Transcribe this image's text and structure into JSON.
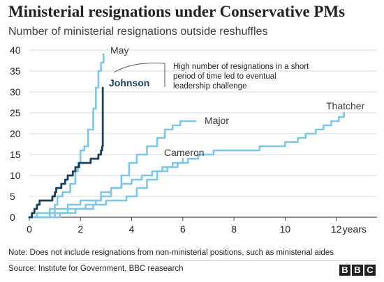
{
  "title": "Ministerial resignations under Conservative PMs",
  "subtitle": "Number of ministerial resignations outside reshuffles",
  "note": "Note: Does not include resignations from non-ministerial positions, such as ministerial aides",
  "source": "Source: Institute for Government, BBC reasearch",
  "logo": [
    "B",
    "B",
    "C"
  ],
  "colors": {
    "light_series": "#7fc6e6",
    "highlight_series": "#1e3f5a",
    "grid": "#d9d9d9",
    "axis": "#444444",
    "text": "#222222"
  },
  "chart_data": {
    "type": "line",
    "xlabel": "",
    "ylabel": "",
    "x_unit_label": "years",
    "xlim": [
      0,
      12.5
    ],
    "ylim": [
      0,
      40
    ],
    "xticks": [
      0,
      2,
      4,
      6,
      8,
      10,
      12
    ],
    "yticks": [
      0,
      5,
      10,
      15,
      20,
      25,
      30,
      35,
      40
    ],
    "grid": "horizontal",
    "annotation": "High number of resignations in a short period of time led to eventual leadership challenge",
    "series": [
      {
        "name": "May",
        "highlight": false,
        "points": [
          [
            0,
            0
          ],
          [
            0.3,
            1
          ],
          [
            0.5,
            1
          ],
          [
            0.8,
            2
          ],
          [
            1.0,
            3
          ],
          [
            1.1,
            5
          ],
          [
            1.3,
            6
          ],
          [
            1.6,
            8
          ],
          [
            1.8,
            11
          ],
          [
            1.9,
            13
          ],
          [
            2.0,
            16
          ],
          [
            2.15,
            17
          ],
          [
            2.3,
            21
          ],
          [
            2.5,
            26
          ],
          [
            2.6,
            31
          ],
          [
            2.7,
            35
          ],
          [
            2.8,
            37
          ],
          [
            2.9,
            39
          ]
        ]
      },
      {
        "name": "Johnson",
        "highlight": true,
        "points": [
          [
            0,
            0
          ],
          [
            0.1,
            1
          ],
          [
            0.2,
            2
          ],
          [
            0.3,
            3
          ],
          [
            0.4,
            4
          ],
          [
            0.8,
            4
          ],
          [
            0.9,
            5
          ],
          [
            1.0,
            6
          ],
          [
            1.05,
            7
          ],
          [
            1.2,
            7
          ],
          [
            1.25,
            8
          ],
          [
            1.4,
            9
          ],
          [
            1.5,
            10
          ],
          [
            1.6,
            10
          ],
          [
            1.7,
            11
          ],
          [
            1.8,
            12
          ],
          [
            1.95,
            13
          ],
          [
            2.3,
            13
          ],
          [
            2.4,
            14
          ],
          [
            2.7,
            15
          ],
          [
            2.8,
            16
          ],
          [
            2.85,
            17
          ],
          [
            2.87,
            31
          ]
        ]
      },
      {
        "name": "Major",
        "highlight": false,
        "points": [
          [
            0,
            0
          ],
          [
            1.0,
            0
          ],
          [
            1.2,
            1
          ],
          [
            1.6,
            1
          ],
          [
            1.8,
            2
          ],
          [
            2.2,
            3
          ],
          [
            2.6,
            4
          ],
          [
            2.8,
            5
          ],
          [
            3.2,
            7
          ],
          [
            3.6,
            10
          ],
          [
            3.9,
            13
          ],
          [
            4.2,
            15
          ],
          [
            4.6,
            17
          ],
          [
            5.0,
            19
          ],
          [
            5.3,
            21
          ],
          [
            5.6,
            22
          ],
          [
            5.9,
            23
          ],
          [
            6.5,
            23
          ]
        ]
      },
      {
        "name": "Cameron",
        "highlight": false,
        "points": [
          [
            0,
            0
          ],
          [
            0.5,
            0
          ],
          [
            1.0,
            2
          ],
          [
            1.5,
            3
          ],
          [
            2.0,
            4
          ],
          [
            2.6,
            4
          ],
          [
            2.8,
            6
          ],
          [
            3.2,
            7
          ],
          [
            3.6,
            8
          ],
          [
            4.0,
            9
          ],
          [
            4.4,
            10
          ],
          [
            4.8,
            11
          ],
          [
            5.2,
            12
          ],
          [
            5.6,
            13
          ],
          [
            6.0,
            14
          ]
        ]
      },
      {
        "name": "Thatcher",
        "highlight": false,
        "points": [
          [
            0,
            0
          ],
          [
            0.6,
            0
          ],
          [
            0.8,
            1
          ],
          [
            1.5,
            2
          ],
          [
            2.5,
            3
          ],
          [
            3.0,
            4
          ],
          [
            3.8,
            5
          ],
          [
            4.2,
            7
          ],
          [
            4.6,
            9
          ],
          [
            5.0,
            11
          ],
          [
            5.4,
            12
          ],
          [
            5.8,
            13
          ],
          [
            6.2,
            14
          ],
          [
            6.6,
            15
          ],
          [
            7.2,
            16
          ],
          [
            8.6,
            16
          ],
          [
            9.0,
            17
          ],
          [
            10.0,
            18
          ],
          [
            10.5,
            19
          ],
          [
            10.8,
            20
          ],
          [
            11.2,
            21
          ],
          [
            11.5,
            22
          ],
          [
            11.8,
            23
          ],
          [
            12.1,
            24
          ],
          [
            12.3,
            25
          ]
        ]
      }
    ]
  }
}
